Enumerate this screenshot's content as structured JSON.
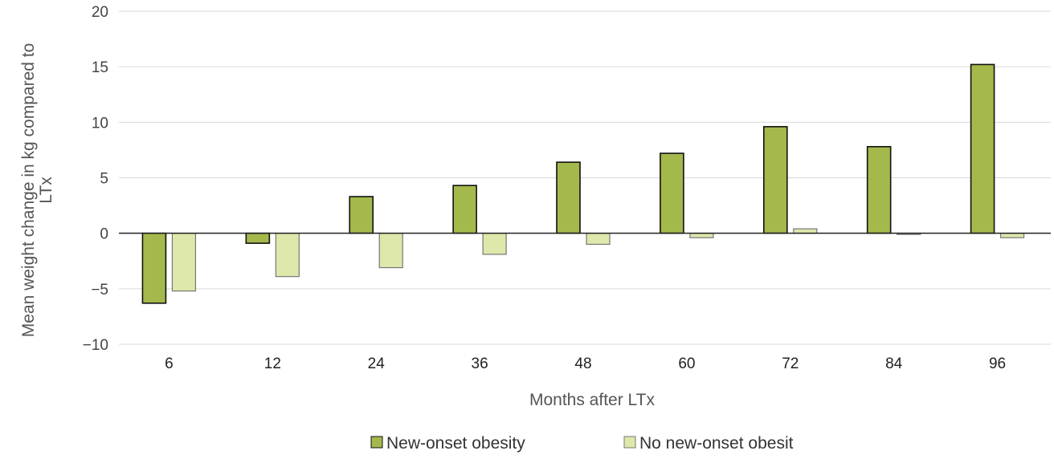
{
  "chart_data": {
    "type": "bar",
    "xlabel": "Months after LTx",
    "ylabel_lines": [
      "Mean weight change in kg compared to",
      "LTx"
    ],
    "categories": [
      "6",
      "12",
      "24",
      "36",
      "48",
      "60",
      "72",
      "84",
      "96"
    ],
    "ylim": [
      -10,
      20
    ],
    "yticks": [
      20,
      15,
      10,
      5,
      0,
      -5,
      -10
    ],
    "ytick_labels": [
      "20",
      "15",
      "10",
      "5",
      "0",
      "−5",
      "−10"
    ],
    "grid": true,
    "legend_position": "bottom",
    "series": [
      {
        "name": "New-onset obesity",
        "values": [
          -6.3,
          -0.9,
          3.3,
          4.3,
          6.4,
          7.2,
          9.6,
          7.8,
          15.2
        ],
        "color": "#a3b94b",
        "stroke": "#111111"
      },
      {
        "name": "No new-onset obesit",
        "values": [
          -5.2,
          -3.9,
          -3.1,
          -1.9,
          -1.0,
          -0.4,
          0.4,
          -0.1,
          -0.4
        ],
        "color": "#dde8aa",
        "stroke": "#777777"
      }
    ]
  }
}
